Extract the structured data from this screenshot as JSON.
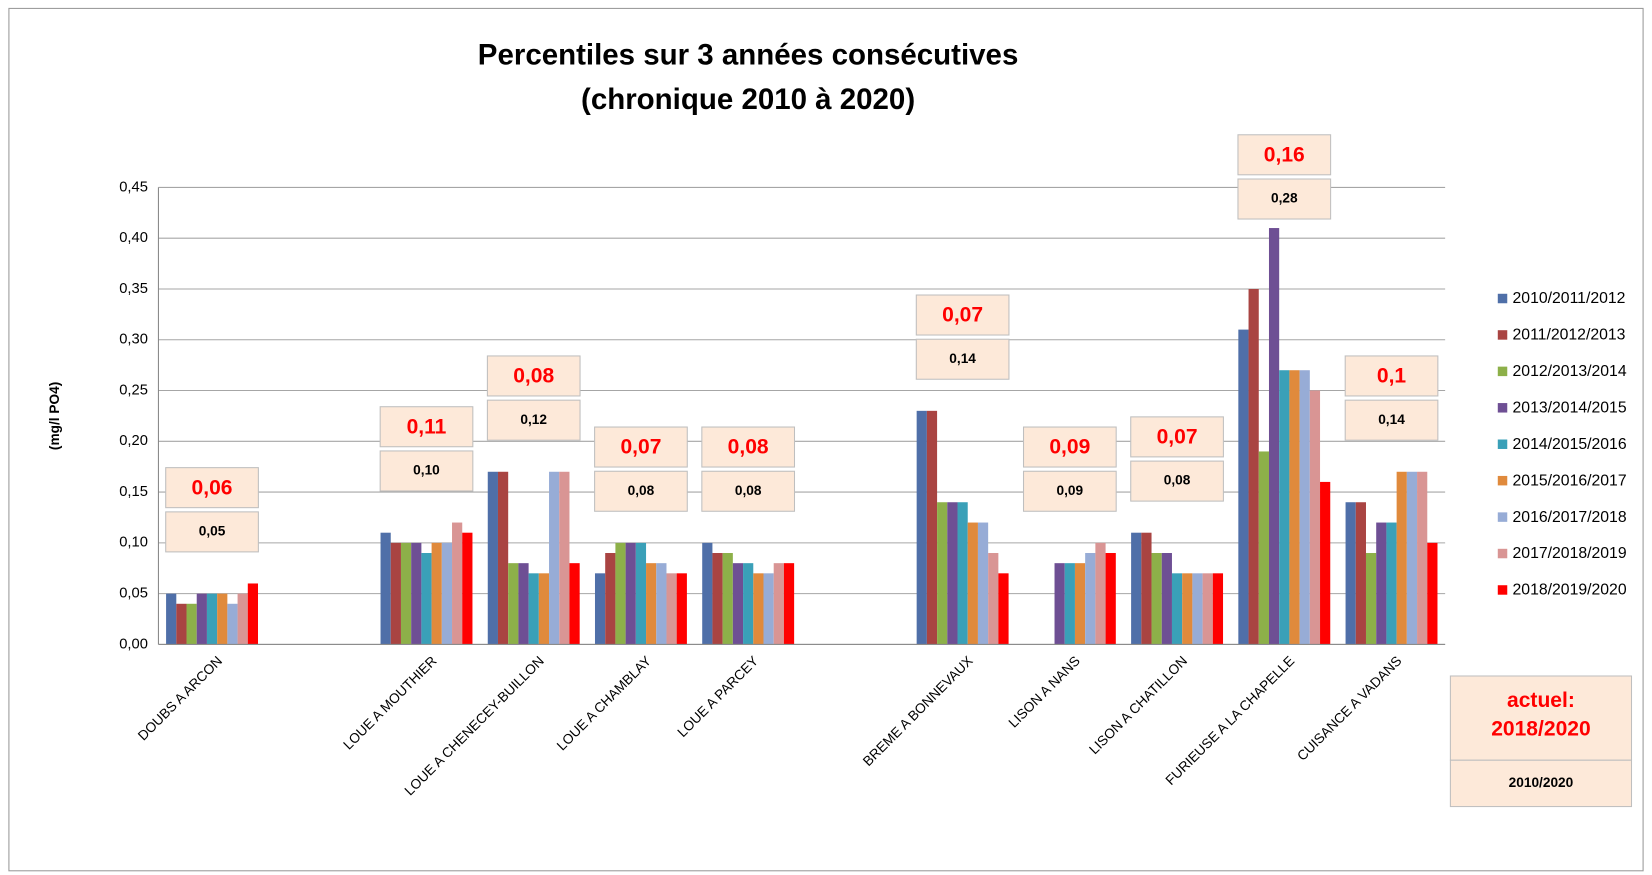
{
  "chart_data": {
    "type": "bar",
    "title": [
      "Percentiles sur 3 années consécutives",
      "(chronique 2010 à 2020)"
    ],
    "y_label": "(mg/l PO4)",
    "categories": [
      "DOUBS A ARCON",
      null,
      "LOUE A MOUTHIER",
      "LOUE A CHENECEY-BUILLON",
      "LOUE A CHAMBLAY",
      "LOUE A PARCEY",
      null,
      "BREME A BONNEVAUX",
      "LISON A NANS",
      "LISON A CHATILLON",
      "FURIEUSE A LA CHAPELLE",
      "CUISANCE A VADANS"
    ],
    "series": [
      {
        "name": "2010/2011/2012",
        "color": "#4f6fa8",
        "values": [
          0.05,
          null,
          0.11,
          0.17,
          0.07,
          0.1,
          null,
          0.23,
          null,
          0.11,
          0.31,
          0.14
        ]
      },
      {
        "name": "2011/2012/2013",
        "color": "#a94442",
        "values": [
          0.04,
          null,
          0.1,
          0.17,
          0.09,
          0.09,
          null,
          0.23,
          null,
          0.11,
          0.35,
          0.14
        ]
      },
      {
        "name": "2012/2013/2014",
        "color": "#8db049",
        "values": [
          0.04,
          null,
          0.1,
          0.08,
          0.1,
          0.09,
          null,
          0.14,
          null,
          0.09,
          0.19,
          0.09
        ]
      },
      {
        "name": "2013/2014/2015",
        "color": "#6e4f94",
        "values": [
          0.05,
          null,
          0.1,
          0.08,
          0.1,
          0.08,
          null,
          0.14,
          0.08,
          0.09,
          0.41,
          0.12
        ]
      },
      {
        "name": "2014/2015/2016",
        "color": "#3aa0b8",
        "values": [
          0.05,
          null,
          0.09,
          0.07,
          0.1,
          0.08,
          null,
          0.14,
          0.08,
          0.07,
          0.27,
          0.12
        ]
      },
      {
        "name": "2015/2016/2017",
        "color": "#e08a3c",
        "values": [
          0.05,
          null,
          0.1,
          0.07,
          0.08,
          0.07,
          null,
          0.12,
          0.08,
          0.07,
          0.27,
          0.17
        ]
      },
      {
        "name": "2016/2017/2018",
        "color": "#97acd6",
        "values": [
          0.04,
          null,
          0.1,
          0.17,
          0.08,
          0.07,
          null,
          0.12,
          0.09,
          0.07,
          0.27,
          0.17
        ]
      },
      {
        "name": "2017/2018/2019",
        "color": "#d99594",
        "values": [
          0.05,
          null,
          0.12,
          0.17,
          0.07,
          0.08,
          null,
          0.09,
          0.1,
          0.07,
          0.25,
          0.17
        ]
      },
      {
        "name": "2018/2019/2020",
        "color": "#ff0000",
        "values": [
          0.06,
          null,
          0.11,
          0.08,
          0.07,
          0.08,
          null,
          0.07,
          0.09,
          0.07,
          0.16,
          0.1
        ]
      }
    ],
    "box_current": [
      "0,06",
      null,
      "0,11",
      "0,08",
      "0,07",
      "0,08",
      null,
      "0,07",
      "0,09",
      "0,07",
      "0,16",
      "0,1"
    ],
    "box_overall": [
      "0,05",
      null,
      "0,10",
      "0,12",
      "0,08",
      "0,08",
      null,
      "0,14",
      "0,09",
      "0,08",
      "0,28",
      "0,14"
    ],
    "legend_box": {
      "current": [
        "actuel:",
        "2018/2020"
      ],
      "overall": "2010/2020"
    },
    "ylim": [
      0,
      0.45
    ],
    "yticks": [
      {
        "value": 0,
        "label": "0,00"
      },
      {
        "value": 0.05,
        "label": "0,05"
      },
      {
        "value": 0.1,
        "label": "0,10"
      },
      {
        "value": 0.15,
        "label": "0,15"
      },
      {
        "value": 0.2,
        "label": "0,20"
      },
      {
        "value": 0.25,
        "label": "0,25"
      },
      {
        "value": 0.3,
        "label": "0,30"
      },
      {
        "value": 0.35,
        "label": "0,35"
      },
      {
        "value": 0.4,
        "label": "0,40"
      },
      {
        "value": 0.45,
        "label": "0,45"
      }
    ],
    "grid": true,
    "legend": "right"
  }
}
